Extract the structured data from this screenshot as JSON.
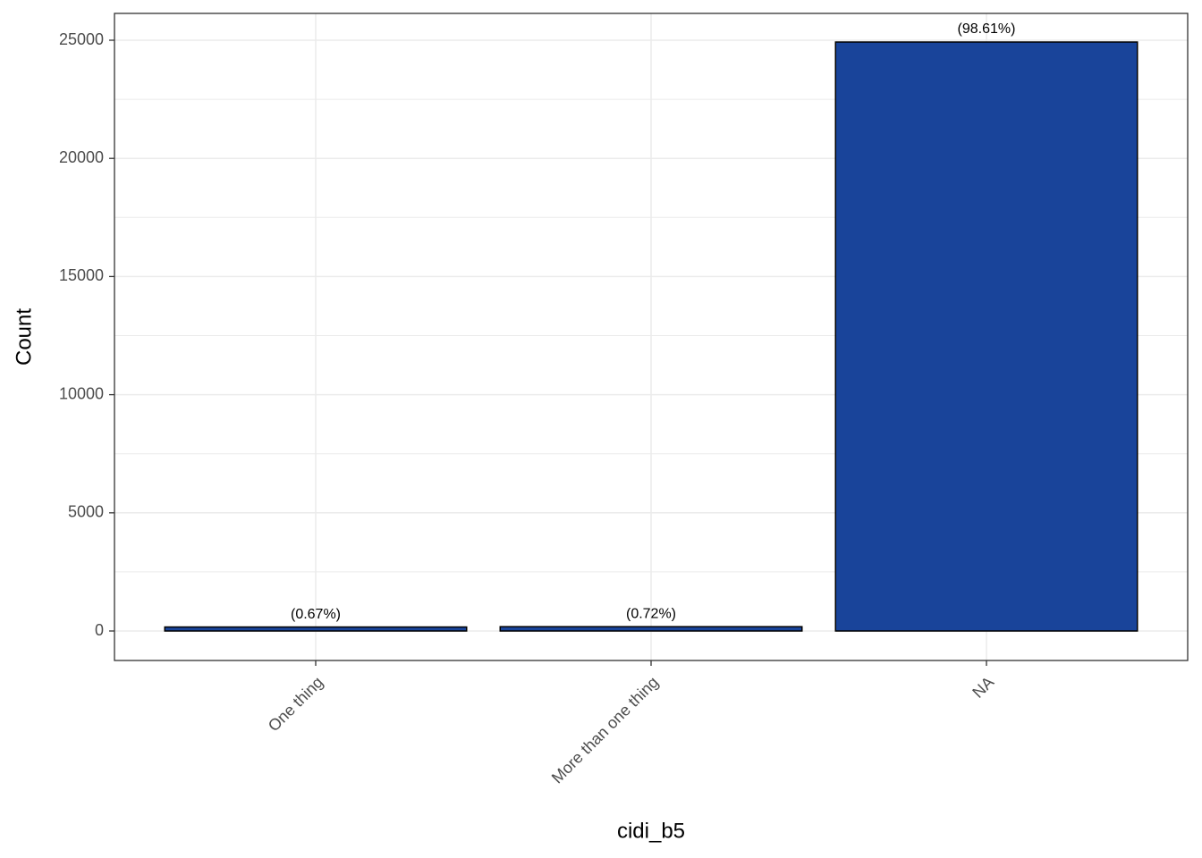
{
  "chart_data": {
    "type": "bar",
    "x_label": "cidi_b5",
    "y_label": "Count",
    "categories": [
      "One thing",
      "More than one thing",
      "NA"
    ],
    "values": [
      169,
      182,
      24924
    ],
    "annotations": [
      "(0.67%)",
      "(0.72%)",
      "(98.61%)"
    ],
    "color": "#19449a",
    "ylim": [
      -1248,
      26135
    ],
    "yticks": [
      0,
      5000,
      10000,
      15000,
      20000,
      25000
    ],
    "grid": true,
    "minor_grid": true
  }
}
